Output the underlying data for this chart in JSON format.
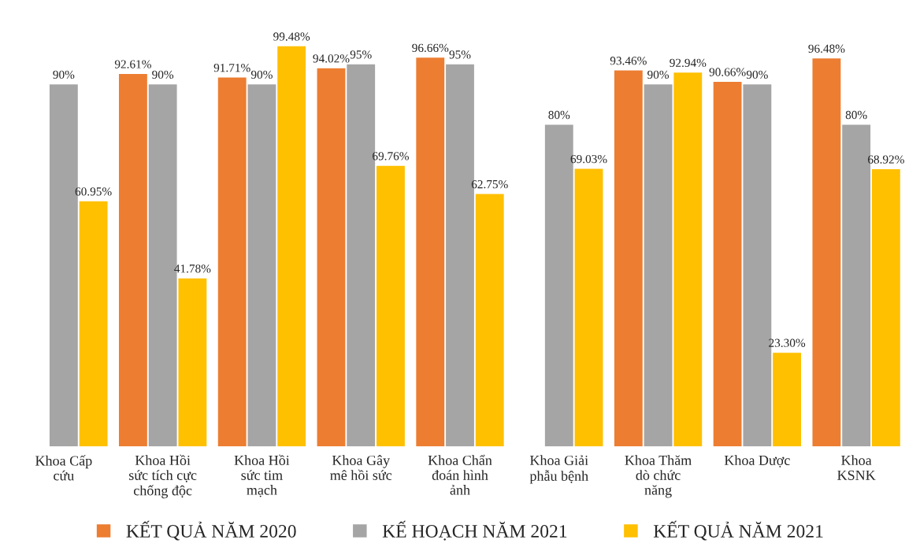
{
  "chart_data": {
    "type": "bar",
    "categories": [
      "Khoa Cấp\ncứu",
      "Khoa Hồi\nsức tích cực\nchống độc",
      "Khoa Hồi\nsức tim\nmạch",
      "Khoa Gây\nmê hồi sức",
      "Khoa Chẩn\nđoán hình\nảnh",
      "Khoa Giải\nphẫu bệnh",
      "Khoa Thăm\ndò chức\nnăng",
      "Khoa Dược",
      "Khoa\nKSNK"
    ],
    "series": [
      {
        "name": "KẾT QUẢ NĂM 2020",
        "color": "#ed7d31",
        "values": [
          null,
          92.61,
          91.71,
          94.02,
          96.66,
          null,
          93.46,
          90.66,
          96.48
        ],
        "value_labels": [
          null,
          "92.61%",
          "91.71%",
          "94.02%",
          "96.66%",
          null,
          "93.46%",
          "90.66%",
          "96.48%"
        ]
      },
      {
        "name": "KẾ HOẠCH NĂM 2021",
        "color": "#a5a5a5",
        "values": [
          90,
          90,
          90,
          95,
          95,
          80,
          90,
          90,
          80
        ],
        "value_labels": [
          "90%",
          "90%",
          "90%",
          "95%",
          "95%",
          "80%",
          "90%",
          "90%",
          "80%"
        ]
      },
      {
        "name": "KẾT QUẢ NĂM 2021",
        "color": "#ffc000",
        "values": [
          60.95,
          41.78,
          99.48,
          69.76,
          62.75,
          69.03,
          92.94,
          23.3,
          68.92
        ],
        "value_labels": [
          "60.95%",
          "41.78%",
          "99.48%",
          "69.76%",
          "62.75%",
          "69.03%",
          "92.94%",
          "23.30%",
          "68.92%"
        ]
      }
    ],
    "legend": "bottom",
    "grid": false,
    "tick_labels": "x"
  }
}
